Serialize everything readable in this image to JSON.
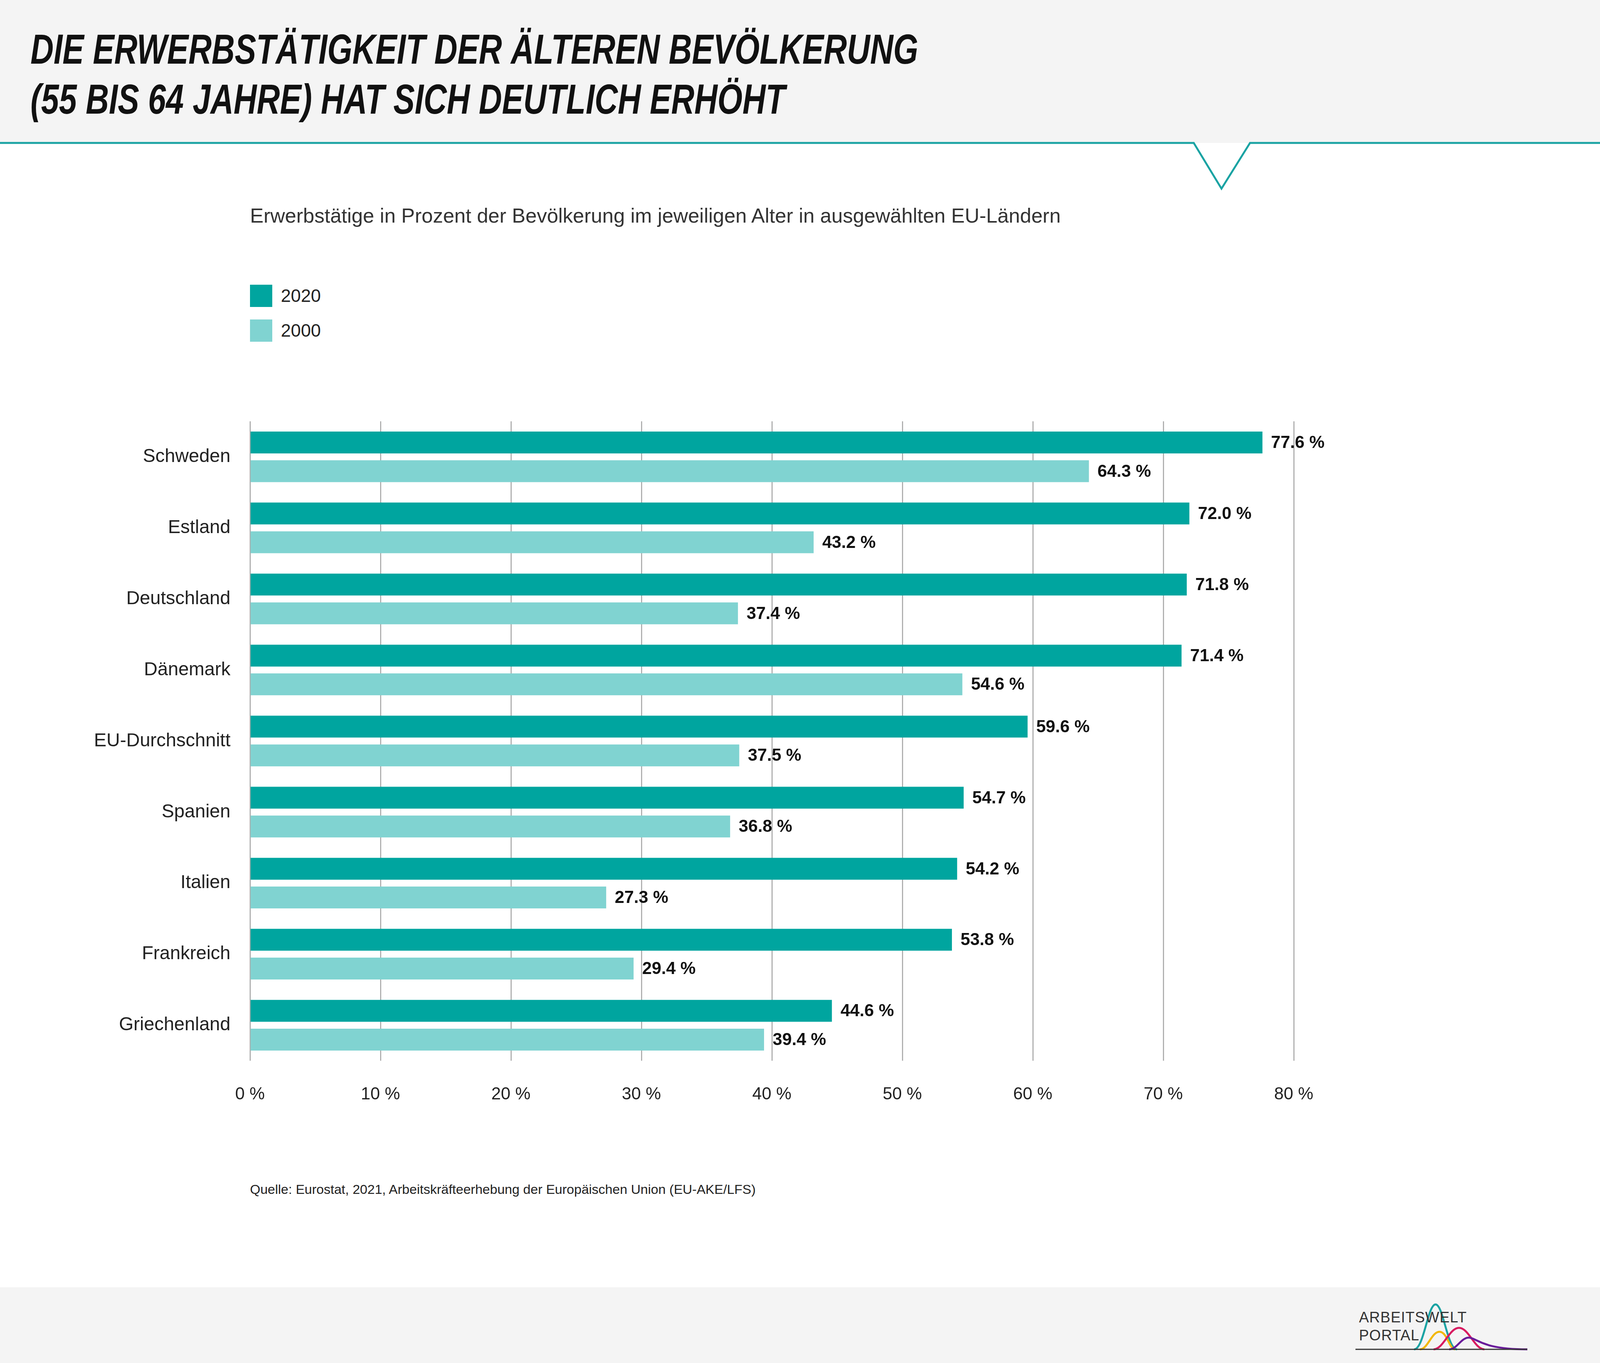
{
  "chart_data": {
    "type": "bar",
    "orientation": "horizontal",
    "title": [
      "DIE ERWERBSTÄTIGKEIT DER ÄLTEREN BEVÖLKERUNG",
      "(55 BIS 64 JAHRE) HAT SICH DEUTLICH ERHÖHT"
    ],
    "subtitle": "Erwerbstätige in Prozent der Bevölkerung im jeweiligen Alter in ausgewählten EU-Ländern",
    "source": "Quelle: Eurostat, 2021, Arbeitskräfteerhebung der Europäischen Union (EU-AKE/LFS)",
    "categories": [
      "Schweden",
      "Estland",
      "Deutschland",
      "Dänemark",
      "EU-Durchschnitt",
      "Spanien",
      "Italien",
      "Frankreich",
      "Griechenland"
    ],
    "series": [
      {
        "name": "2020",
        "color": "#00a59f",
        "values": [
          77.6,
          72.0,
          71.8,
          71.4,
          59.6,
          54.7,
          54.2,
          53.8,
          44.6
        ],
        "value_labels": [
          "77.6 %",
          "72.0 %",
          "71.8 %",
          "71.4 %",
          "59.6 %",
          "54.7 %",
          "54.2 %",
          "53.8 %",
          "44.6 %"
        ]
      },
      {
        "name": "2000",
        "color": "#80d3d1",
        "values": [
          64.3,
          43.2,
          37.4,
          54.6,
          37.5,
          36.8,
          27.3,
          29.4,
          39.4
        ],
        "value_labels": [
          "64.3 %",
          "43.2 %",
          "37.4 %",
          "54.6 %",
          "37.5 %",
          "36.8 %",
          "27.3 %",
          "29.4 %",
          "39.4 %"
        ]
      }
    ],
    "xlim": [
      0,
      80
    ],
    "xticks": [
      {
        "value": 0,
        "label": "0 %"
      },
      {
        "value": 10,
        "label": "10 %"
      },
      {
        "value": 20,
        "label": "20 %"
      },
      {
        "value": 30,
        "label": "30 %"
      },
      {
        "value": 40,
        "label": "40 %"
      },
      {
        "value": 50,
        "label": "50 %"
      },
      {
        "value": 60,
        "label": "60 %"
      },
      {
        "value": 70,
        "label": "70 %"
      },
      {
        "value": 80,
        "label": "80 %"
      }
    ],
    "grid": true,
    "legend": "upper left",
    "data_labels": true
  },
  "logo": [
    "ARBEITSWELT",
    "PORTAL"
  ]
}
